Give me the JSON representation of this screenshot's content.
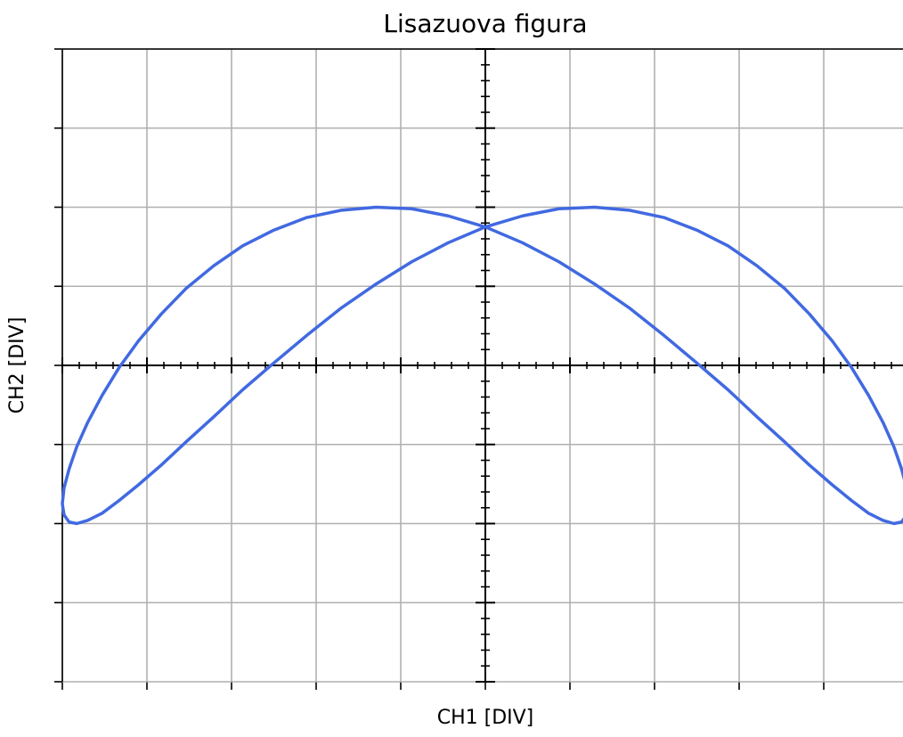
{
  "chart_data": {
    "type": "line",
    "title": "Lisazuova figura",
    "xlabel": "CH1 [DIV]",
    "ylabel": "CH2 [DIV]",
    "xlim": [
      -5,
      5
    ],
    "ylim": [
      -4,
      4
    ],
    "xticks": [
      -5,
      -4,
      -3,
      -2,
      -1,
      0,
      1,
      2,
      3,
      4,
      5
    ],
    "yticks": [
      -4,
      -3,
      -2,
      -1,
      0,
      1,
      2,
      3,
      4
    ],
    "grid": true,
    "x": [
      0,
      0.44,
      0.87,
      1.29,
      1.71,
      2.11,
      2.5,
      2.87,
      3.21,
      3.54,
      3.83,
      4.1,
      4.33,
      4.53,
      4.7,
      4.83,
      4.92,
      4.98,
      5,
      4.98,
      4.92,
      4.83,
      4.7,
      4.53,
      4.33,
      4.1,
      3.83,
      3.54,
      3.21,
      2.87,
      2.5,
      2.11,
      1.71,
      1.29,
      0.87,
      0.44,
      0,
      -0.44,
      -0.87,
      -1.29,
      -1.71,
      -2.11,
      -2.5,
      -2.87,
      -3.21,
      -3.54,
      -3.83,
      -4.1,
      -4.33,
      -4.53,
      -4.7,
      -4.83,
      -4.92,
      -4.98,
      -5,
      -4.98,
      -4.92,
      -4.83,
      -4.7,
      -4.53,
      -4.33,
      -4.1,
      -3.83,
      -3.54,
      -3.21,
      -2.87,
      -2.5,
      -2.11,
      -1.71,
      -1.29,
      -0.87,
      -0.44,
      0
    ],
    "series": [
      {
        "color": "#4169e1",
        "values": [
          1.75,
          1.89,
          1.98,
          2,
          1.96,
          1.87,
          1.71,
          1.51,
          1.26,
          0.97,
          0.65,
          0.31,
          -0.03,
          -0.38,
          -0.72,
          -1.03,
          -1.31,
          -1.55,
          -1.75,
          -1.89,
          -1.98,
          -2,
          -1.96,
          -1.87,
          -1.71,
          -1.51,
          -1.26,
          -0.97,
          -0.65,
          -0.31,
          0.03,
          0.38,
          0.72,
          1.03,
          1.31,
          1.55,
          1.75,
          1.89,
          1.98,
          2,
          1.96,
          1.87,
          1.71,
          1.51,
          1.26,
          0.97,
          0.65,
          0.31,
          -0.03,
          -0.38,
          -0.72,
          -1.03,
          -1.31,
          -1.55,
          -1.75,
          -1.89,
          -1.98,
          -2,
          -1.96,
          -1.87,
          -1.71,
          -1.51,
          -1.26,
          -0.97,
          -0.65,
          -0.31,
          0.03,
          0.38,
          0.72,
          1.03,
          1.31,
          1.55,
          1.75
        ]
      }
    ]
  }
}
